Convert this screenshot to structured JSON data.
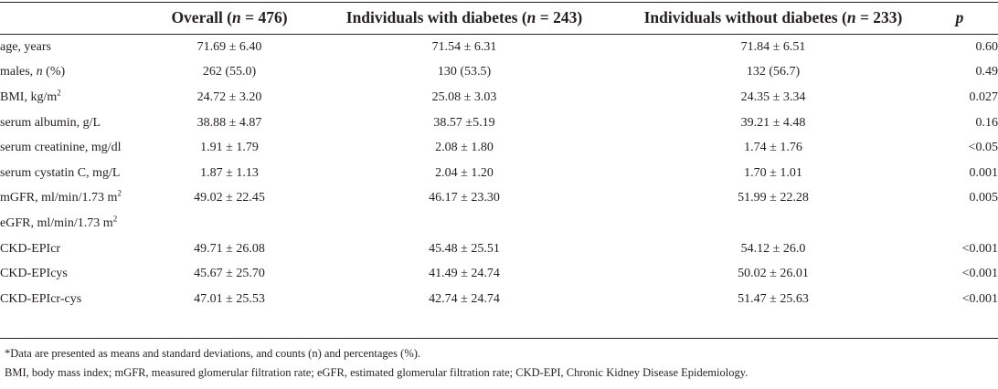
{
  "header": {
    "overall": {
      "label": "Overall (",
      "n_label": "n",
      "eq": " = 476)"
    },
    "with_diabetes": {
      "label": "Individuals with diabetes (",
      "n_label": "n",
      "eq": " = 243)"
    },
    "without_diabetes": {
      "label": "Individuals without diabetes (",
      "n_label": "n",
      "eq": " = 233)"
    },
    "p": "p"
  },
  "rows": [
    {
      "label": "age, years",
      "overall": "71.69 ± 6.40",
      "with": "71.54 ± 6.31",
      "without": "71.84 ± 6.51",
      "p": "0.60"
    },
    {
      "label": "males, ",
      "label_italic": "n",
      "label_suffix": " (%)",
      "overall": "262 (55.0)",
      "with": "130 (53.5)",
      "without": "132 (56.7)",
      "p": "0.49"
    },
    {
      "label": "BMI, kg/m",
      "label_sup": "2",
      "overall": "24.72 ± 3.20",
      "with": "25.08 ± 3.03",
      "without": "24.35 ± 3.34",
      "p": "0.027"
    },
    {
      "label": "serum albumin, g/L",
      "overall": "38.88 ± 4.87",
      "with": "38.57 ±5.19",
      "without": "39.21 ± 4.48",
      "p": "0.16"
    },
    {
      "label": "serum creatinine, mg/dl",
      "overall": "1.91 ± 1.79",
      "with": "2.08 ± 1.80",
      "without": "1.74 ± 1.76",
      "p": "<0.05"
    },
    {
      "label": "serum cystatin C, mg/L",
      "overall": "1.87 ± 1.13",
      "with": "2.04 ± 1.20",
      "without": "1.70 ± 1.01",
      "p": "0.001"
    },
    {
      "label": "mGFR, ml/min/1.73 m",
      "label_sup": "2",
      "overall": "49.02 ± 22.45",
      "with": "46.17 ± 23.30",
      "without": "51.99 ± 22.28",
      "p": "0.005"
    },
    {
      "label": "eGFR, ml/min/1.73 m",
      "label_sup": "2",
      "overall": "",
      "with": "",
      "without": "",
      "p": ""
    },
    {
      "label": "CKD-EPIcr",
      "overall": "49.71 ± 26.08",
      "with": "45.48 ± 25.51",
      "without": "54.12 ± 26.0",
      "p": "<0.001"
    },
    {
      "label": "CKD-EPIcys",
      "overall": "45.67 ± 25.70",
      "with": "41.49 ± 24.74",
      "without": "50.02 ± 26.01",
      "p": "<0.001"
    },
    {
      "label": "CKD-EPIcr-cys",
      "overall": "47.01 ± 25.53",
      "with": "42.74 ± 24.74",
      "without": "51.47 ± 25.63",
      "p": "<0.001"
    }
  ],
  "footnotes": {
    "line1": "*Data are presented as means and standard deviations, and counts (n) and percentages (%).",
    "line2": "BMI, body mass index; mGFR, measured glomerular filtration rate; eGFR, estimated glomerular filtration rate; CKD-EPI, Chronic Kidney Disease Epidemiology."
  }
}
